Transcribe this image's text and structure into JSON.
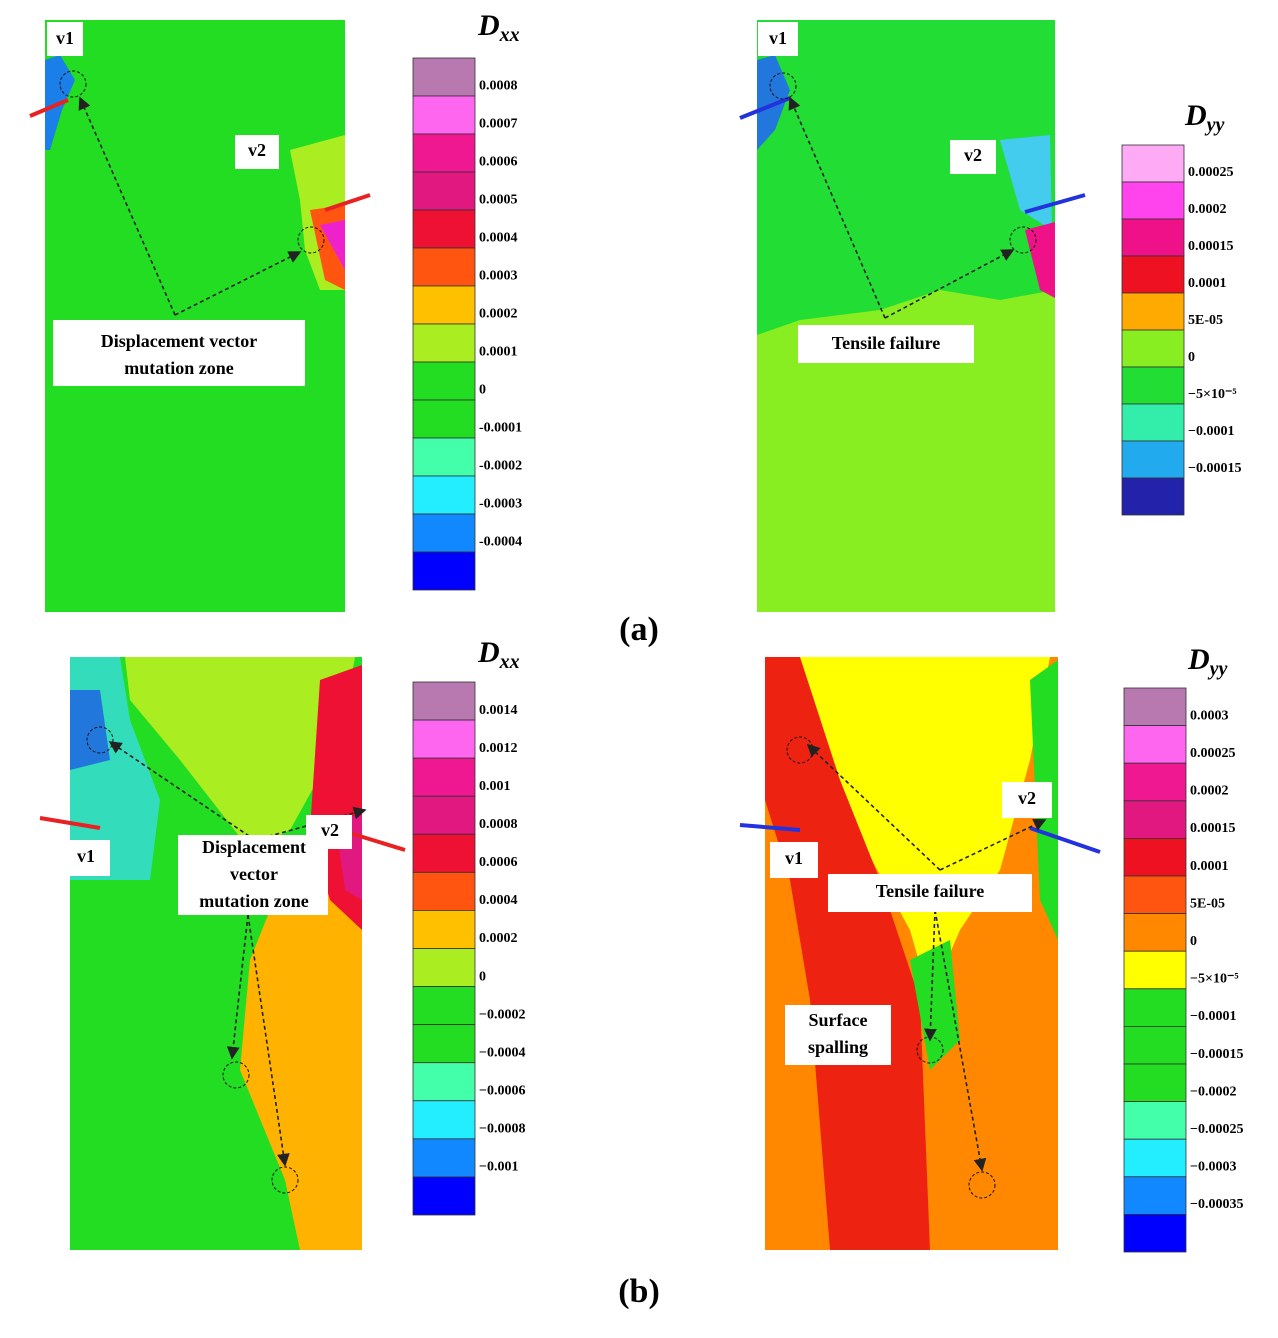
{
  "captions": [
    "(a)",
    "(b)"
  ],
  "panels": [
    {
      "callouts": [
        "v1",
        "v2"
      ],
      "annotation": [
        "Displacement vector",
        "mutation zone"
      ],
      "colorbar": {
        "symbol": "D",
        "subscript": "xx",
        "labels": [
          "0.0008",
          "0.0007",
          "0.0006",
          "0.0005",
          "0.0004",
          "0.0003",
          "0.0002",
          "0.0001",
          "0",
          "-0.0001",
          "-0.0002",
          "-0.0003",
          "-0.0004"
        ],
        "colors": [
          "#b878b0",
          "#ff66f0",
          "#f01890",
          "#e01880",
          "#ee1133",
          "#ff5511",
          "#ffc000",
          "#aaee22",
          "#22dd22",
          "#22dd22",
          "#44ffaa",
          "#22eeff",
          "#1188ff",
          "#0000ff"
        ]
      }
    },
    {
      "callouts": [
        "v1",
        "v2"
      ],
      "annotation": [
        "Tensile failure"
      ],
      "colorbar": {
        "symbol": "D",
        "subscript": "yy",
        "labels": [
          "0.00025",
          "0.0002",
          "0.00015",
          "0.0001",
          "5E-05",
          "0",
          "−5×10⁻⁵",
          "−0.0001",
          "−0.00015"
        ],
        "colors": [
          "#ffaaf5",
          "#ff44ee",
          "#ee1188",
          "#ee1122",
          "#ffaa00",
          "#88ee22",
          "#22dd33",
          "#33eeaa",
          "#22aaee",
          "#2222aa"
        ]
      }
    },
    {
      "callouts": [
        "v1",
        "v2"
      ],
      "annotation": [
        "Displacement",
        "vector",
        "mutation zone"
      ],
      "colorbar": {
        "symbol": "D",
        "subscript": "xx",
        "labels": [
          "0.0014",
          "0.0012",
          "0.001",
          "0.0008",
          "0.0006",
          "0.0004",
          "0.0002",
          "0",
          "−0.0002",
          "−0.0004",
          "−0.0006",
          "−0.0008",
          "−0.001"
        ],
        "colors": [
          "#b878b0",
          "#ff66f0",
          "#f01890",
          "#e01880",
          "#ee1133",
          "#ff5511",
          "#ffc000",
          "#aaee22",
          "#22dd22",
          "#22dd22",
          "#44ffaa",
          "#22eeff",
          "#1188ff",
          "#0000ff"
        ]
      }
    },
    {
      "callouts": [
        "v1",
        "v2"
      ],
      "annotation": [
        "Tensile failure",
        "Surface",
        "spalling"
      ],
      "colorbar": {
        "symbol": "D",
        "subscript": "yy",
        "labels": [
          "0.0003",
          "0.00025",
          "0.0002",
          "0.00015",
          "0.0001",
          "5E-05",
          "0",
          "−5×10⁻⁵",
          "−0.0001",
          "−0.00015",
          "−0.0002",
          "−0.00025",
          "−0.0003",
          "−0.00035"
        ],
        "colors": [
          "#b878b0",
          "#ff66f0",
          "#f01890",
          "#e01880",
          "#ee1122",
          "#ff5511",
          "#ff8800",
          "#ffff00",
          "#22dd22",
          "#22dd22",
          "#22dd22",
          "#44ffaa",
          "#22eeff",
          "#1188ff",
          "#0000ff"
        ]
      }
    }
  ]
}
